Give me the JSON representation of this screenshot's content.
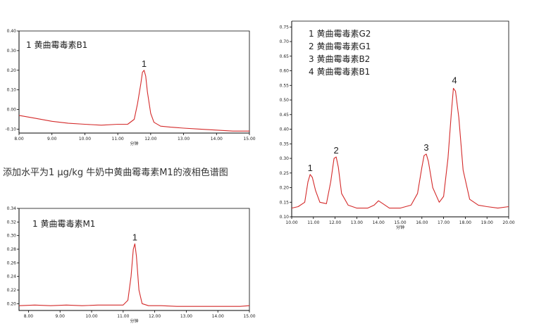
{
  "caption": "添加水平为1 μg/kg 牛奶中黄曲霉毒素M1的液相色谱图",
  "chart_data": [
    {
      "type": "line",
      "legend": [
        "1 黄曲霉毒素B1"
      ],
      "xlabel": "分钟",
      "ylabel": "",
      "xlim": [
        8.0,
        15.0
      ],
      "ylim": [
        -0.12,
        0.4
      ],
      "xticks": [
        8.0,
        9.0,
        10.0,
        11.0,
        12.0,
        13.0,
        14.0,
        15.0
      ],
      "xtick_labels": [
        "8.00",
        "9.00",
        "10.00",
        "11.00",
        "12.00",
        "13.00",
        "14.00",
        "15.00"
      ],
      "yticks": [
        -0.1,
        0.0,
        0.1,
        0.2,
        0.3,
        0.4
      ],
      "ytick_labels": [
        "-0.10",
        "0.00",
        "0.10",
        "0.20",
        "0.30",
        "0.40"
      ],
      "series": [
        {
          "color": "#d42a2a",
          "x": [
            8.0,
            8.5,
            9.0,
            9.5,
            10.0,
            10.5,
            11.0,
            11.3,
            11.5,
            11.6,
            11.7,
            11.75,
            11.8,
            11.85,
            11.9,
            12.0,
            12.1,
            12.3,
            12.6,
            13.0,
            13.5,
            14.0,
            14.5,
            15.0
          ],
          "y": [
            -0.03,
            -0.045,
            -0.06,
            -0.07,
            -0.075,
            -0.08,
            -0.075,
            -0.075,
            -0.05,
            0.03,
            0.13,
            0.19,
            0.2,
            0.17,
            0.09,
            -0.02,
            -0.065,
            -0.085,
            -0.09,
            -0.095,
            -0.1,
            -0.105,
            -0.11,
            -0.11
          ]
        }
      ],
      "peaks": [
        {
          "label": "1",
          "x": 11.8,
          "y": 0.2
        }
      ]
    },
    {
      "type": "line",
      "legend": [
        "1 黄曲霉毒素G2",
        "2 黄曲霉毒素G1",
        "3 黄曲霉毒素B2",
        "4 黄曲霉毒素B1"
      ],
      "xlabel": "分钟",
      "ylabel": "",
      "xlim": [
        10.0,
        20.0
      ],
      "ylim": [
        0.1,
        0.77
      ],
      "xticks": [
        10.0,
        11.0,
        12.0,
        13.0,
        14.0,
        15.0,
        16.0,
        17.0,
        18.0,
        19.0,
        20.0
      ],
      "xtick_labels": [
        "10.00",
        "11.00",
        "12.00",
        "13.00",
        "14.00",
        "15.00",
        "16.00",
        "17.00",
        "18.00",
        "19.00",
        "20.00"
      ],
      "yticks": [
        0.1,
        0.15,
        0.2,
        0.25,
        0.3,
        0.35,
        0.4,
        0.45,
        0.5,
        0.55,
        0.6,
        0.65,
        0.7,
        0.75
      ],
      "ytick_labels": [
        "0.10",
        "0.15",
        "0.20",
        "0.25",
        "0.30",
        "0.35",
        "0.40",
        "0.45",
        "0.50",
        "0.55",
        "0.60",
        "0.65",
        "0.70",
        "0.75"
      ],
      "series": [
        {
          "color": "#d42a2a",
          "x": [
            10.0,
            10.3,
            10.6,
            10.75,
            10.85,
            10.95,
            11.1,
            11.3,
            11.6,
            11.8,
            11.95,
            12.05,
            12.15,
            12.3,
            12.6,
            13.0,
            13.5,
            13.8,
            14.0,
            14.2,
            14.5,
            15.0,
            15.5,
            15.8,
            16.0,
            16.1,
            16.2,
            16.3,
            16.5,
            16.8,
            17.0,
            17.2,
            17.35,
            17.45,
            17.55,
            17.7,
            17.9,
            18.2,
            18.6,
            19.0,
            19.5,
            20.0
          ],
          "y": [
            0.13,
            0.135,
            0.15,
            0.22,
            0.245,
            0.235,
            0.19,
            0.15,
            0.145,
            0.22,
            0.3,
            0.305,
            0.27,
            0.18,
            0.14,
            0.13,
            0.13,
            0.14,
            0.155,
            0.145,
            0.13,
            0.13,
            0.14,
            0.18,
            0.27,
            0.31,
            0.315,
            0.29,
            0.2,
            0.15,
            0.17,
            0.3,
            0.45,
            0.54,
            0.53,
            0.44,
            0.26,
            0.16,
            0.14,
            0.135,
            0.13,
            0.135
          ]
        }
      ],
      "peaks": [
        {
          "label": "1",
          "x": 10.85,
          "y": 0.245
        },
        {
          "label": "2",
          "x": 12.05,
          "y": 0.305
        },
        {
          "label": "3",
          "x": 16.2,
          "y": 0.315
        },
        {
          "label": "4",
          "x": 17.5,
          "y": 0.545
        }
      ]
    },
    {
      "type": "line",
      "legend": [
        "1 黄曲霉毒素M1"
      ],
      "xlabel": "分钟",
      "ylabel": "",
      "xlim": [
        7.7,
        15.0
      ],
      "ylim": [
        0.19,
        0.34
      ],
      "xticks": [
        8.0,
        9.0,
        10.0,
        11.0,
        12.0,
        13.0,
        14.0,
        15.0
      ],
      "xtick_labels": [
        "8.00",
        "9.00",
        "10.00",
        "11.00",
        "12.00",
        "13.00",
        "14.00",
        "15.00"
      ],
      "yticks": [
        0.2,
        0.22,
        0.24,
        0.26,
        0.28,
        0.3,
        0.32,
        0.34
      ],
      "ytick_labels": [
        "0.20",
        "0.22",
        "0.24",
        "0.26",
        "0.28",
        "0.30",
        "0.32",
        "0.34"
      ],
      "series": [
        {
          "color": "#d42a2a",
          "x": [
            7.7,
            8.2,
            8.7,
            9.2,
            9.7,
            10.2,
            10.7,
            11.0,
            11.15,
            11.25,
            11.32,
            11.37,
            11.42,
            11.5,
            11.6,
            11.8,
            12.2,
            12.7,
            13.2,
            13.7,
            14.2,
            14.7,
            15.0
          ],
          "y": [
            0.197,
            0.198,
            0.197,
            0.198,
            0.197,
            0.198,
            0.198,
            0.198,
            0.205,
            0.24,
            0.28,
            0.288,
            0.27,
            0.22,
            0.2,
            0.197,
            0.197,
            0.196,
            0.196,
            0.196,
            0.196,
            0.196,
            0.197
          ]
        }
      ],
      "peaks": [
        {
          "label": "1",
          "x": 11.37,
          "y": 0.288
        }
      ]
    }
  ]
}
